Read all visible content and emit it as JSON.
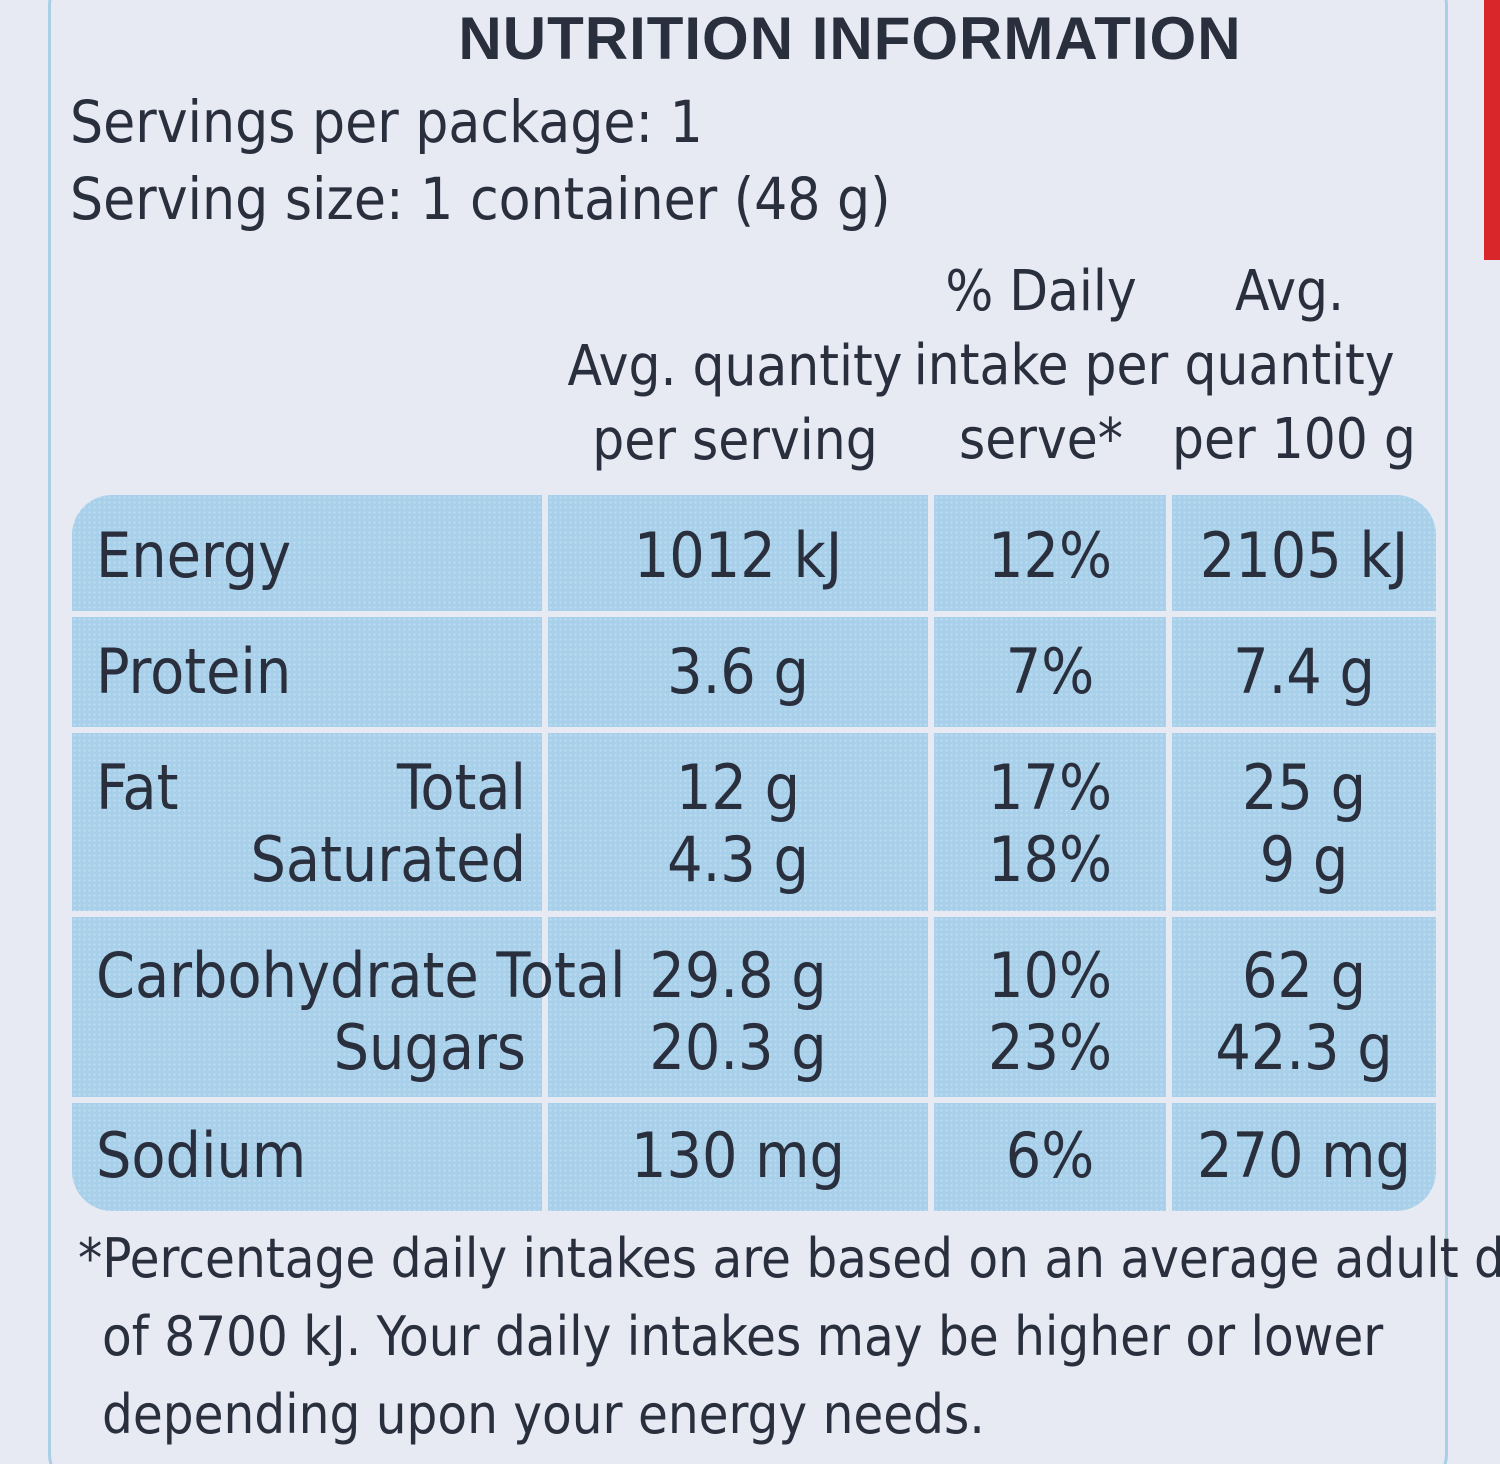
{
  "title": "NUTRITION INFORMATION",
  "servings_per_package": "Servings per package: 1",
  "serving_size": "Serving size: 1 container (48 g)",
  "columns": {
    "per_serving": [
      "Avg. quantity",
      "per serving"
    ],
    "daily_intake": [
      "% Daily",
      "intake per",
      "serve*"
    ],
    "per_100g": [
      "Avg.",
      "quantity",
      "per 100 g"
    ]
  },
  "rows": {
    "energy": {
      "label": "Energy",
      "per_serving": "1012 kJ",
      "daily_intake": "12%",
      "per_100g": "2105 kJ"
    },
    "protein": {
      "label": "Protein",
      "per_serving": "3.6 g",
      "daily_intake": "7%",
      "per_100g": "7.4 g"
    },
    "fat": {
      "label": "Fat",
      "total": {
        "label": "Total",
        "per_serving": "12 g",
        "daily_intake": "17%",
        "per_100g": "25 g"
      },
      "saturated": {
        "label": "Saturated",
        "per_serving": "4.3 g",
        "daily_intake": "18%",
        "per_100g": "9 g"
      }
    },
    "carbohydrate": {
      "label": "Carbohydrate Total",
      "total": {
        "per_serving": "29.8 g",
        "daily_intake": "10%",
        "per_100g": "62 g"
      },
      "sugars": {
        "label": "Sugars",
        "per_serving": "20.3 g",
        "daily_intake": "23%",
        "per_100g": "42.3 g"
      }
    },
    "sodium": {
      "label": "Sodium",
      "per_serving": "130 mg",
      "daily_intake": "6%",
      "per_100g": "270 mg"
    }
  },
  "footnote": [
    "*Percentage daily intakes are based on an average adult diet",
    "of 8700 kJ. Your daily intakes may be higher or lower",
    "depending upon your energy needs."
  ],
  "colors": {
    "background": "#e7eaf3",
    "cell_fill": "#a8d0ea",
    "border": "#a9cfe6",
    "text": "#2a2f3e",
    "edge_red": "#d8262b"
  }
}
